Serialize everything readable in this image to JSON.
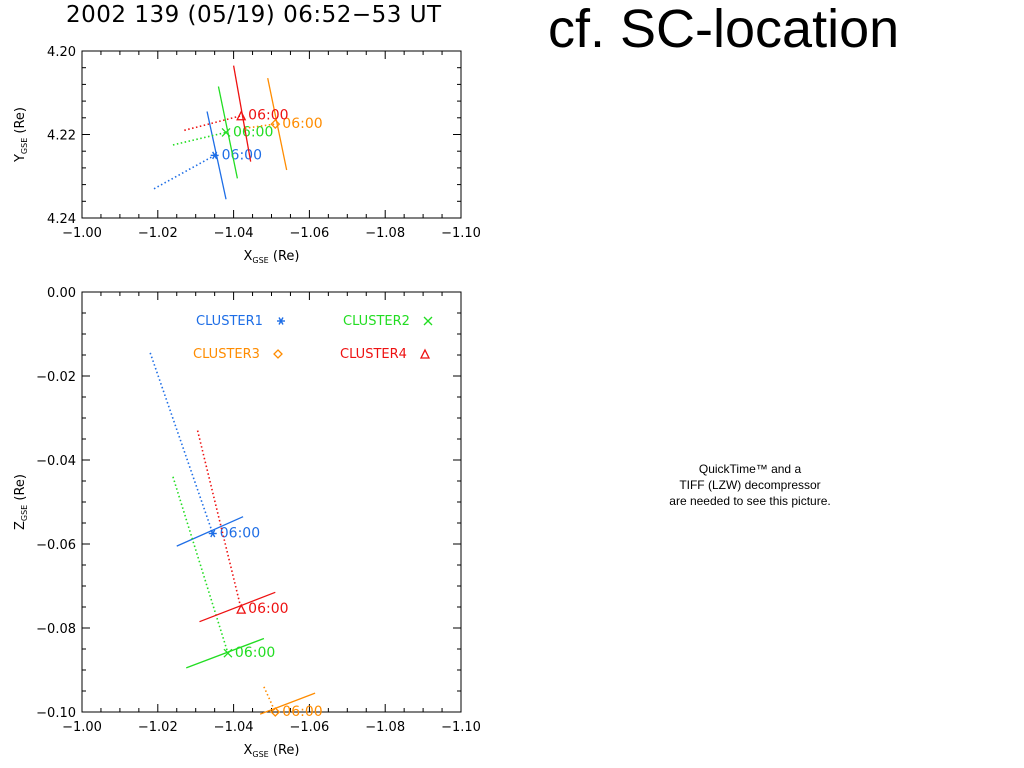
{
  "header": {
    "plot_title": "2002 139 (05/19) 06:52−53 UT",
    "slide_title": "cf. SC-location"
  },
  "quicktime_notice": {
    "line1": "QuickTime™ and a",
    "line2": "TIFF (LZW) decompressor",
    "line3": "are needed to see this picture."
  },
  "chart_data": [
    {
      "type": "scatter",
      "panel": "top",
      "xlabel": "X",
      "xlabel_sub": "GSE",
      "xlabel_unit": " (Re)",
      "ylabel": "Y",
      "ylabel_sub": "GSE",
      "ylabel_unit": " (Re)",
      "xlim": [
        -1.0,
        -1.1
      ],
      "ylim": [
        4.2,
        4.24
      ],
      "x_ticks": [
        "−1.00",
        "−1.02",
        "−1.04",
        "−1.06",
        "−1.08",
        "−1.10"
      ],
      "x_tick_values": [
        -1.0,
        -1.02,
        -1.04,
        -1.06,
        -1.08,
        -1.1
      ],
      "y_ticks": [
        "4.20",
        "4.22",
        "4.24"
      ],
      "y_tick_values": [
        4.2,
        4.22,
        4.24
      ],
      "grid": false,
      "series": [
        {
          "name": "CLUSTER1",
          "color": "#1e6ee6",
          "marker": "*",
          "x": -1.035,
          "y": 4.225,
          "label": "06:00",
          "trail": [
            [
              -1.019,
              4.233
            ],
            [
              -1.035,
              4.225
            ]
          ],
          "bar": [
            [
              -1.033,
              4.2145
            ],
            [
              -1.038,
              4.2355
            ]
          ]
        },
        {
          "name": "CLUSTER2",
          "color": "#22dd22",
          "marker": "x",
          "x": -1.038,
          "y": 4.2195,
          "label": "06:00",
          "trail": [
            [
              -1.024,
              4.2225
            ],
            [
              -1.038,
              4.2195
            ]
          ],
          "bar": [
            [
              -1.036,
              4.2085
            ],
            [
              -1.041,
              4.2305
            ]
          ]
        },
        {
          "name": "CLUSTER3",
          "color": "#ff8c00",
          "marker": "diamond",
          "x": -1.051,
          "y": 4.2175,
          "label": "06:00",
          "trail": [
            [
              -1.043,
              4.2185
            ],
            [
              -1.051,
              4.2175
            ]
          ],
          "bar": [
            [
              -1.049,
              4.2065
            ],
            [
              -1.054,
              4.2285
            ]
          ]
        },
        {
          "name": "CLUSTER4",
          "color": "#ee1111",
          "marker": "triangle",
          "x": -1.042,
          "y": 4.2155,
          "label": "06:00",
          "trail": [
            [
              -1.027,
              4.219
            ],
            [
              -1.042,
              4.2155
            ]
          ],
          "bar": [
            [
              -1.04,
              4.2035
            ],
            [
              -1.0445,
              4.2265
            ]
          ]
        }
      ]
    },
    {
      "type": "scatter",
      "panel": "bottom",
      "xlabel": "X",
      "xlabel_sub": "GSE",
      "xlabel_unit": " (Re)",
      "ylabel": "Z",
      "ylabel_sub": "GSE",
      "ylabel_unit": " (Re)",
      "xlim": [
        -1.0,
        -1.1
      ],
      "ylim": [
        0.0,
        -0.1
      ],
      "x_ticks": [
        "−1.00",
        "−1.02",
        "−1.04",
        "−1.06",
        "−1.08",
        "−1.10"
      ],
      "x_tick_values": [
        -1.0,
        -1.02,
        -1.04,
        -1.06,
        -1.08,
        -1.1
      ],
      "y_ticks": [
        "0.00",
        "−0.02",
        "−0.04",
        "−0.06",
        "−0.08",
        "−0.10"
      ],
      "y_tick_values": [
        0.0,
        -0.02,
        -0.04,
        -0.06,
        -0.08,
        -0.1
      ],
      "grid": false,
      "legend": "top",
      "series": [
        {
          "name": "CLUSTER1",
          "color": "#1e6ee6",
          "marker": "*",
          "legend_symbol": "∗",
          "x": -1.0345,
          "y": -0.0575,
          "label": "06:00",
          "trail": [
            [
              -1.018,
              -0.0145
            ],
            [
              -1.0345,
              -0.0575
            ]
          ],
          "bar": [
            [
              -1.025,
              -0.0605
            ],
            [
              -1.0425,
              -0.0535
            ]
          ]
        },
        {
          "name": "CLUSTER2",
          "color": "#22dd22",
          "marker": "x",
          "legend_symbol": "×",
          "x": -1.0385,
          "y": -0.086,
          "label": "06:00",
          "trail": [
            [
              -1.024,
              -0.044
            ],
            [
              -1.0385,
              -0.086
            ]
          ],
          "bar": [
            [
              -1.0275,
              -0.0895
            ],
            [
              -1.048,
              -0.0825
            ]
          ]
        },
        {
          "name": "CLUSTER3",
          "color": "#ff8c00",
          "marker": "diamond",
          "legend_symbol": "◇",
          "x": -1.051,
          "y": -0.1,
          "label": "06:00",
          "trail": [
            [
              -1.048,
              -0.094
            ],
            [
              -1.051,
              -0.1
            ]
          ],
          "bar": [
            [
              -1.047,
              -0.1005
            ],
            [
              -1.0615,
              -0.0955
            ]
          ]
        },
        {
          "name": "CLUSTER4",
          "color": "#ee1111",
          "marker": "triangle",
          "legend_symbol": "Δ",
          "x": -1.042,
          "y": -0.0755,
          "label": "06:00",
          "trail": [
            [
              -1.0305,
              -0.033
            ],
            [
              -1.042,
              -0.0755
            ]
          ],
          "bar": [
            [
              -1.031,
              -0.0785
            ],
            [
              -1.051,
              -0.0715
            ]
          ]
        }
      ]
    }
  ]
}
